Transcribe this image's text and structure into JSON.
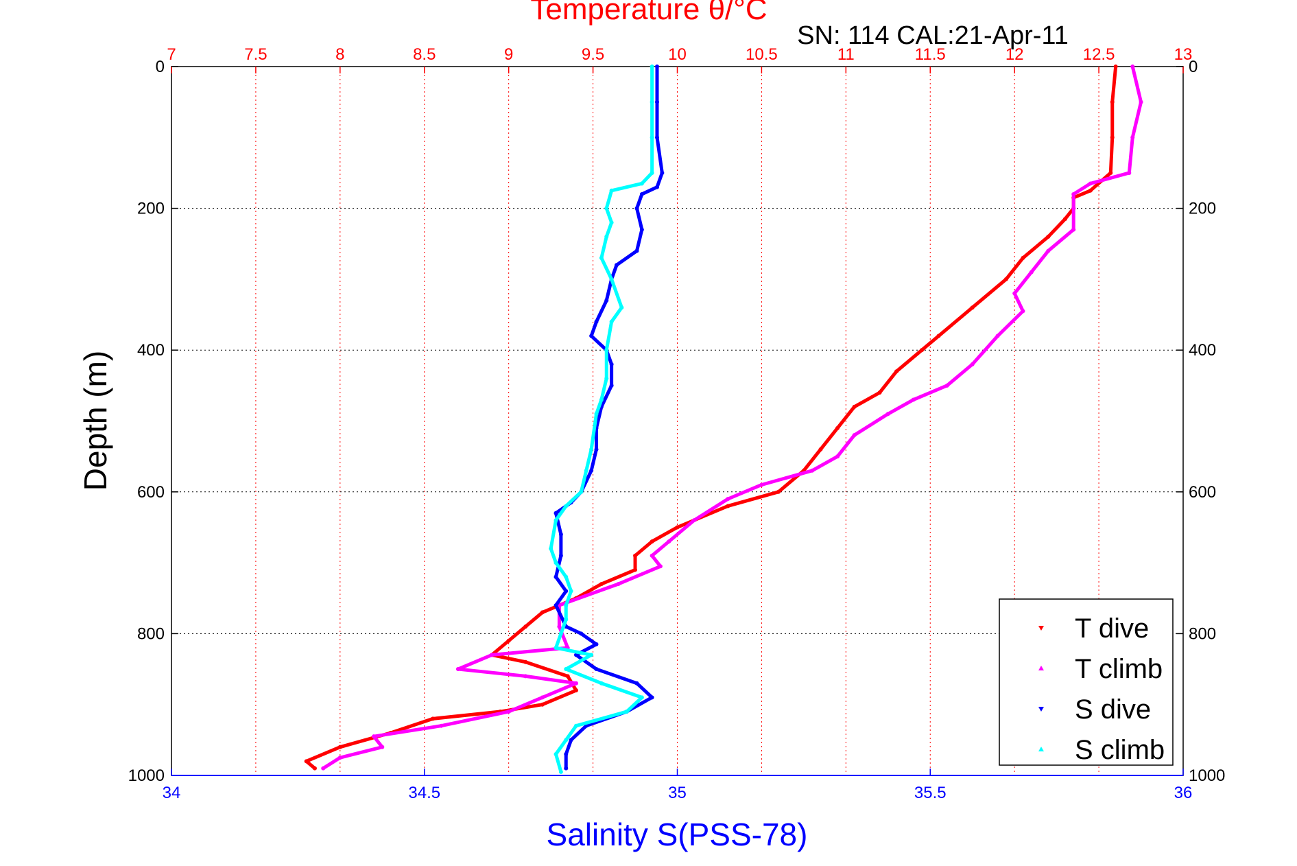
{
  "chart_data": {
    "type": "scatter",
    "title_top": "Temperature θ/°C",
    "subtitle": "SN: 114  CAL:21-Apr-11",
    "xlabel": "Salinity S(PSS-78)",
    "ylabel": "Depth (m)",
    "y_reversed": true,
    "ylim": [
      0,
      1000
    ],
    "y_ticks": [
      0,
      200,
      400,
      600,
      800,
      1000
    ],
    "temperature_axis": {
      "lim": [
        7,
        13
      ],
      "ticks": [
        "7",
        "7.5",
        "8",
        "8.5",
        "9",
        "9.5",
        "10",
        "10.5",
        "11",
        "11.5",
        "12",
        "12.5",
        "13"
      ],
      "color": "#ff0000"
    },
    "salinity_axis": {
      "lim": [
        34,
        36
      ],
      "ticks": [
        "34",
        "34.5",
        "35",
        "35.5",
        "36"
      ],
      "color": "#0000ff"
    },
    "grid": true,
    "legend_position": "bottom-right",
    "series": [
      {
        "name": "T dive",
        "axis": "temperature",
        "color": "#ff0000",
        "marker": "triangle-down",
        "points": [
          [
            12.6,
            0
          ],
          [
            12.58,
            50
          ],
          [
            12.58,
            100
          ],
          [
            12.57,
            150
          ],
          [
            12.45,
            175
          ],
          [
            12.35,
            185
          ],
          [
            12.35,
            200
          ],
          [
            12.3,
            215
          ],
          [
            12.2,
            240
          ],
          [
            12.05,
            270
          ],
          [
            11.95,
            300
          ],
          [
            11.75,
            340
          ],
          [
            11.55,
            380
          ],
          [
            11.45,
            400
          ],
          [
            11.3,
            430
          ],
          [
            11.2,
            460
          ],
          [
            11.05,
            480
          ],
          [
            10.95,
            510
          ],
          [
            10.85,
            540
          ],
          [
            10.75,
            570
          ],
          [
            10.6,
            600
          ],
          [
            10.3,
            620
          ],
          [
            10.0,
            650
          ],
          [
            9.85,
            670
          ],
          [
            9.75,
            690
          ],
          [
            9.75,
            710
          ],
          [
            9.55,
            730
          ],
          [
            9.4,
            750
          ],
          [
            9.2,
            770
          ],
          [
            9.1,
            790
          ],
          [
            9.0,
            810
          ],
          [
            8.9,
            830
          ],
          [
            9.1,
            840
          ],
          [
            9.35,
            860
          ],
          [
            9.4,
            880
          ],
          [
            9.2,
            900
          ],
          [
            8.95,
            910
          ],
          [
            8.55,
            920
          ],
          [
            8.3,
            940
          ],
          [
            8.0,
            960
          ],
          [
            7.8,
            980
          ],
          [
            7.85,
            990
          ]
        ]
      },
      {
        "name": "T climb",
        "axis": "temperature",
        "color": "#ff00ff",
        "marker": "triangle-up",
        "points": [
          [
            12.7,
            0
          ],
          [
            12.75,
            50
          ],
          [
            12.7,
            100
          ],
          [
            12.68,
            150
          ],
          [
            12.45,
            165
          ],
          [
            12.35,
            180
          ],
          [
            12.35,
            200
          ],
          [
            12.35,
            230
          ],
          [
            12.2,
            260
          ],
          [
            12.1,
            290
          ],
          [
            12.0,
            320
          ],
          [
            12.05,
            345
          ],
          [
            11.9,
            380
          ],
          [
            11.75,
            420
          ],
          [
            11.6,
            450
          ],
          [
            11.4,
            470
          ],
          [
            11.25,
            490
          ],
          [
            11.05,
            520
          ],
          [
            10.95,
            550
          ],
          [
            10.8,
            570
          ],
          [
            10.5,
            590
          ],
          [
            10.3,
            610
          ],
          [
            10.1,
            640
          ],
          [
            9.95,
            670
          ],
          [
            9.85,
            690
          ],
          [
            9.9,
            705
          ],
          [
            9.65,
            730
          ],
          [
            9.3,
            760
          ],
          [
            9.3,
            790
          ],
          [
            9.35,
            820
          ],
          [
            8.9,
            830
          ],
          [
            8.7,
            850
          ],
          [
            9.1,
            860
          ],
          [
            9.4,
            870
          ],
          [
            9.2,
            890
          ],
          [
            9.0,
            910
          ],
          [
            8.6,
            930
          ],
          [
            8.2,
            945
          ],
          [
            8.25,
            960
          ],
          [
            8.0,
            975
          ],
          [
            7.9,
            990
          ]
        ]
      },
      {
        "name": "S dive",
        "axis": "salinity",
        "color": "#0000ff",
        "marker": "triangle-down",
        "points": [
          [
            34.96,
            0
          ],
          [
            34.96,
            50
          ],
          [
            34.96,
            100
          ],
          [
            34.97,
            150
          ],
          [
            34.96,
            170
          ],
          [
            34.93,
            180
          ],
          [
            34.92,
            200
          ],
          [
            34.93,
            230
          ],
          [
            34.92,
            260
          ],
          [
            34.88,
            280
          ],
          [
            34.87,
            300
          ],
          [
            34.86,
            330
          ],
          [
            34.84,
            360
          ],
          [
            34.83,
            380
          ],
          [
            34.86,
            400
          ],
          [
            34.87,
            420
          ],
          [
            34.87,
            450
          ],
          [
            34.85,
            480
          ],
          [
            34.84,
            510
          ],
          [
            34.84,
            540
          ],
          [
            34.83,
            570
          ],
          [
            34.81,
            600
          ],
          [
            34.79,
            615
          ],
          [
            34.76,
            630
          ],
          [
            34.77,
            660
          ],
          [
            34.77,
            690
          ],
          [
            34.76,
            720
          ],
          [
            34.78,
            740
          ],
          [
            34.76,
            760
          ],
          [
            34.78,
            790
          ],
          [
            34.81,
            800
          ],
          [
            34.84,
            815
          ],
          [
            34.8,
            830
          ],
          [
            34.84,
            850
          ],
          [
            34.92,
            870
          ],
          [
            34.95,
            890
          ],
          [
            34.9,
            910
          ],
          [
            34.82,
            930
          ],
          [
            34.79,
            950
          ],
          [
            34.78,
            970
          ],
          [
            34.78,
            990
          ]
        ]
      },
      {
        "name": "S climb",
        "axis": "salinity",
        "color": "#00ffff",
        "marker": "triangle-up",
        "points": [
          [
            34.95,
            0
          ],
          [
            34.95,
            50
          ],
          [
            34.95,
            100
          ],
          [
            34.95,
            150
          ],
          [
            34.93,
            165
          ],
          [
            34.87,
            175
          ],
          [
            34.86,
            200
          ],
          [
            34.87,
            220
          ],
          [
            34.86,
            240
          ],
          [
            34.85,
            270
          ],
          [
            34.87,
            300
          ],
          [
            34.89,
            340
          ],
          [
            34.87,
            360
          ],
          [
            34.86,
            400
          ],
          [
            34.86,
            440
          ],
          [
            34.85,
            470
          ],
          [
            34.84,
            490
          ],
          [
            34.83,
            540
          ],
          [
            34.82,
            570
          ],
          [
            34.81,
            600
          ],
          [
            34.78,
            620
          ],
          [
            34.76,
            640
          ],
          [
            34.75,
            680
          ],
          [
            34.76,
            700
          ],
          [
            34.78,
            720
          ],
          [
            34.79,
            740
          ],
          [
            34.78,
            760
          ],
          [
            34.78,
            780
          ],
          [
            34.77,
            800
          ],
          [
            34.76,
            820
          ],
          [
            34.83,
            830
          ],
          [
            34.78,
            850
          ],
          [
            34.85,
            870
          ],
          [
            34.93,
            890
          ],
          [
            34.9,
            910
          ],
          [
            34.8,
            930
          ],
          [
            34.78,
            950
          ],
          [
            34.76,
            970
          ],
          [
            34.77,
            995
          ]
        ]
      }
    ]
  }
}
